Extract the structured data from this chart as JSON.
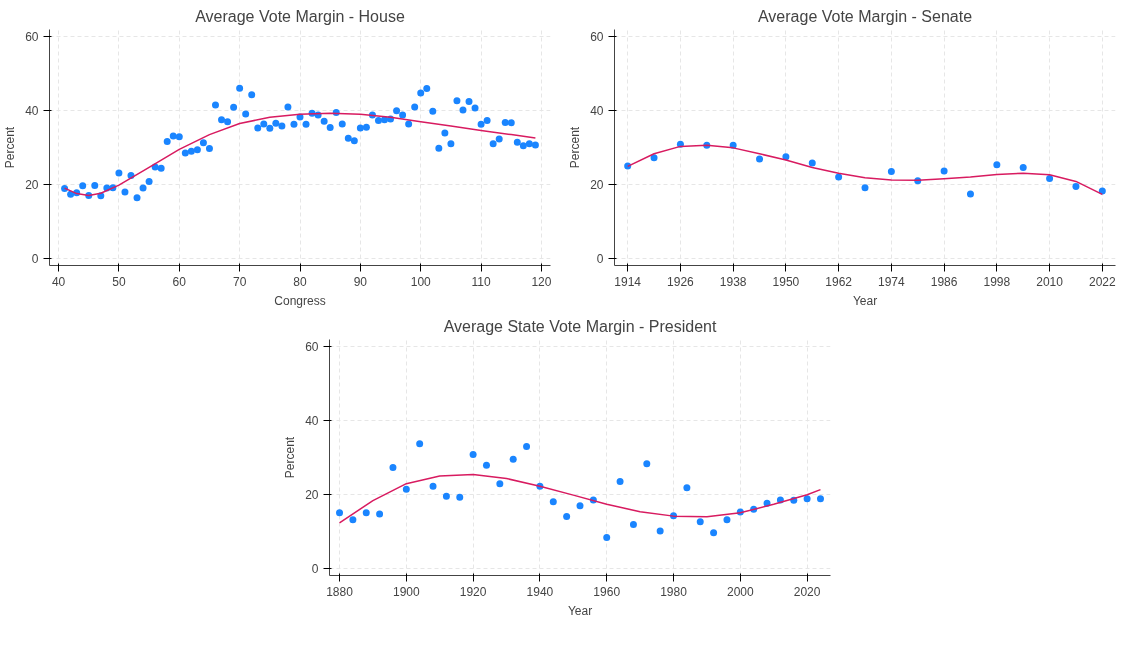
{
  "chart_data": [
    {
      "type": "scatter",
      "title": "Average Vote Margin - House",
      "xlabel": "Congress",
      "ylabel": "Percent",
      "xlim": [
        38.5,
        121.5
      ],
      "ylim": [
        -2,
        62
      ],
      "xticks": [
        40,
        50,
        60,
        70,
        80,
        90,
        100,
        110,
        120
      ],
      "yticks": [
        0,
        20,
        40,
        60
      ],
      "grid": true,
      "marker": "circle",
      "series": [
        {
          "color": "#1a85ff",
          "x": [
            41,
            42,
            43,
            44,
            45,
            46,
            47,
            48,
            49,
            50,
            51,
            52,
            53,
            54,
            55,
            56,
            57,
            58,
            59,
            60,
            61,
            62,
            63,
            64,
            65,
            66,
            67,
            68,
            69,
            70,
            71,
            72,
            73,
            74,
            75,
            76,
            77,
            78,
            79,
            80,
            81,
            82,
            83,
            84,
            85,
            86,
            87,
            88,
            89,
            90,
            91,
            92,
            93,
            94,
            95,
            96,
            97,
            98,
            99,
            100,
            101,
            102,
            103,
            104,
            105,
            106,
            107,
            108,
            109,
            110,
            111,
            112,
            113,
            114,
            115,
            116,
            117,
            118,
            119
          ],
          "values": [
            18.9,
            17.3,
            17.7,
            19.6,
            17.0,
            19.7,
            16.9,
            19.0,
            19.1,
            23.1,
            17.9,
            22.4,
            16.4,
            19.0,
            20.8,
            24.7,
            24.4,
            31.6,
            33.1,
            32.9,
            28.5,
            29.0,
            29.4,
            31.3,
            29.7,
            41.5,
            37.5,
            37.0,
            40.9,
            46.1,
            39.1,
            44.3,
            35.3,
            36.4,
            35.2,
            36.6,
            35.8,
            41.0,
            36.3,
            38.3,
            36.3,
            39.3,
            38.8,
            37.1,
            35.4,
            39.5,
            36.4,
            32.5,
            31.8,
            35.3,
            35.5,
            38.8,
            37.3,
            37.5,
            37.7,
            40.0,
            38.8,
            36.4,
            41.0,
            44.8,
            46.0,
            39.8,
            29.8,
            33.9,
            31.0,
            42.7,
            40.2,
            42.5,
            40.7,
            36.3,
            37.3,
            31.0,
            32.3,
            36.8,
            36.7,
            31.4,
            30.5,
            31.0,
            30.7
          ]
        },
        {
          "type": "line",
          "marker": "none",
          "color": "#d81b60",
          "x": [
            41,
            43,
            45,
            47,
            50,
            55,
            60,
            65,
            70,
            75,
            80,
            85,
            90,
            95,
            100,
            105,
            110,
            115,
            119
          ],
          "values": [
            19.0,
            17.5,
            17.0,
            17.6,
            19.8,
            24.6,
            29.5,
            33.5,
            36.5,
            38.2,
            39.0,
            39.3,
            39.0,
            38.2,
            37.0,
            35.8,
            34.6,
            33.5,
            32.6
          ]
        }
      ]
    },
    {
      "type": "scatter",
      "title": "Average Vote Margin - Senate",
      "xlabel": "Year",
      "ylabel": "Percent",
      "xlim": [
        1911,
        2025
      ],
      "ylim": [
        -2,
        62
      ],
      "xticks": [
        1914,
        1926,
        1938,
        1950,
        1962,
        1974,
        1986,
        1998,
        2010,
        2022
      ],
      "yticks": [
        0,
        20,
        40,
        60
      ],
      "grid": true,
      "marker": "circle",
      "series": [
        {
          "color": "#1a85ff",
          "x": [
            1914,
            1920,
            1926,
            1932,
            1938,
            1944,
            1950,
            1956,
            1962,
            1968,
            1974,
            1980,
            1986,
            1992,
            1998,
            2004,
            2010,
            2016,
            2022
          ],
          "values": [
            25.0,
            27.2,
            30.9,
            30.6,
            30.6,
            26.9,
            27.5,
            25.8,
            22.0,
            19.1,
            23.5,
            21.0,
            23.6,
            17.4,
            25.3,
            24.6,
            21.6,
            19.4,
            18.2
          ]
        },
        {
          "type": "line",
          "marker": "none",
          "color": "#d81b60",
          "x": [
            1914,
            1920,
            1926,
            1932,
            1938,
            1944,
            1950,
            1956,
            1962,
            1968,
            1974,
            1980,
            1986,
            1992,
            1998,
            2004,
            2010,
            2016,
            2022
          ],
          "values": [
            24.9,
            28.3,
            30.3,
            30.6,
            29.9,
            28.3,
            26.6,
            24.6,
            23.0,
            21.8,
            21.2,
            21.1,
            21.5,
            22.0,
            22.7,
            23.0,
            22.6,
            20.8,
            17.3
          ]
        }
      ]
    },
    {
      "type": "scatter",
      "title": "Average State Vote Margin - President",
      "xlabel": "Year",
      "ylabel": "Percent",
      "xlim": [
        1877,
        2027
      ],
      "ylim": [
        -2,
        62
      ],
      "xticks": [
        1880,
        1900,
        1920,
        1940,
        1960,
        1980,
        2000,
        2020
      ],
      "yticks": [
        0,
        20,
        40,
        60
      ],
      "grid": true,
      "marker": "circle",
      "series": [
        {
          "color": "#1a85ff",
          "x": [
            1880,
            1884,
            1888,
            1892,
            1896,
            1900,
            1904,
            1908,
            1912,
            1916,
            1920,
            1924,
            1928,
            1932,
            1936,
            1940,
            1944,
            1948,
            1952,
            1956,
            1960,
            1964,
            1968,
            1972,
            1976,
            1980,
            1984,
            1988,
            1992,
            1996,
            2000,
            2004,
            2008,
            2012,
            2016,
            2020,
            2024
          ],
          "values": [
            15.0,
            13.1,
            15.0,
            14.7,
            27.3,
            21.4,
            33.7,
            22.2,
            19.5,
            19.2,
            30.8,
            27.9,
            22.9,
            29.5,
            33.0,
            22.2,
            18.0,
            14.0,
            16.9,
            18.5,
            8.3,
            23.5,
            11.8,
            28.3,
            10.1,
            14.2,
            21.8,
            12.6,
            9.6,
            13.1,
            15.2,
            16.0,
            17.6,
            18.5,
            18.4,
            18.8,
            18.8
          ]
        },
        {
          "type": "line",
          "marker": "none",
          "color": "#d81b60",
          "x": [
            1880,
            1890,
            1900,
            1910,
            1920,
            1930,
            1940,
            1950,
            1960,
            1970,
            1980,
            1990,
            2000,
            2010,
            2020,
            2024
          ],
          "values": [
            12.3,
            18.3,
            22.9,
            25.0,
            25.4,
            24.3,
            22.2,
            19.8,
            17.3,
            15.3,
            14.1,
            13.9,
            15.0,
            17.3,
            19.9,
            21.3
          ]
        }
      ]
    }
  ]
}
